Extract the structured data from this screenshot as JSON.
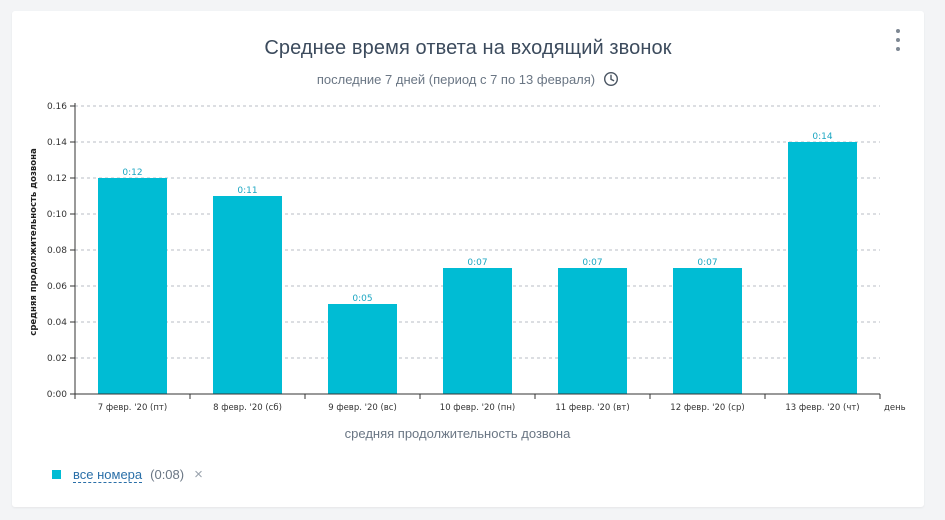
{
  "header": {
    "title": "Среднее время ответа на входящий звонок",
    "subtitle": "последние 7 дней (период с 7 по 13 февраля)",
    "clock_icon": "clock-icon",
    "menu_icon": "more-vertical-icon"
  },
  "colors": {
    "bar": "#00bcd4",
    "label": "#1ba6c2",
    "grid": "#b8bec4",
    "axis": "#333333"
  },
  "chart_data": {
    "type": "bar",
    "categories": [
      "7 февр. '20 (пт)",
      "8 февр. '20 (сб)",
      "9 февр. '20 (вс)",
      "10 февр. '20 (пн)",
      "11 февр. '20 (вт)",
      "12 февр. '20 (ср)",
      "13 февр. '20 (чт)"
    ],
    "values": [
      0.12,
      0.11,
      0.05,
      0.07,
      0.07,
      0.07,
      0.14
    ],
    "data_labels": [
      "0:12",
      "0:11",
      "0:05",
      "0:07",
      "0:07",
      "0:07",
      "0:14"
    ],
    "yticks": [
      "0:00",
      "0.02",
      "0.04",
      "0.06",
      "0.08",
      "0:10",
      "0.12",
      "0.14",
      "0.16"
    ],
    "ylim": [
      0,
      0.16
    ],
    "ylabel": "средняя продолжительность дозвона",
    "xlabel": "средняя продолжительность дозвона",
    "x_unit": "день",
    "grid": true
  },
  "legend": {
    "series_name": "все номера",
    "series_value": "(0:08)",
    "close_symbol": "×"
  }
}
